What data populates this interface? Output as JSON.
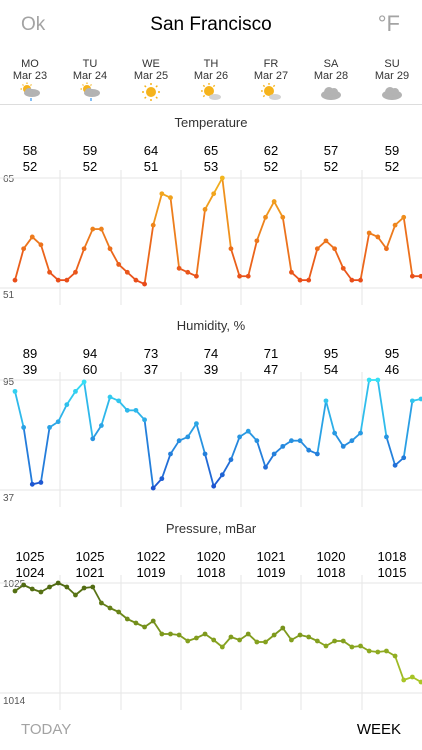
{
  "header": {
    "ok_label": "Ok",
    "city": "San Francisco",
    "unit_label": "°F"
  },
  "days": [
    {
      "name": "MO",
      "date": "Mar 23",
      "icon": "partly-sunny-rain-icon"
    },
    {
      "name": "TU",
      "date": "Mar 24",
      "icon": "partly-sunny-rain-icon"
    },
    {
      "name": "WE",
      "date": "Mar 25",
      "icon": "sun-icon"
    },
    {
      "name": "TH",
      "date": "Mar 26",
      "icon": "sun-cloud-icon"
    },
    {
      "name": "FR",
      "date": "Mar 27",
      "icon": "sun-cloud-icon"
    },
    {
      "name": "SA",
      "date": "Mar 28",
      "icon": "cloud-icon"
    },
    {
      "name": "SU",
      "date": "Mar 29",
      "icon": "cloud-icon"
    }
  ],
  "temperature": {
    "title": "Temperature",
    "axis_max": "65",
    "axis_min": "51",
    "daily": [
      {
        "high": "58",
        "low": "52"
      },
      {
        "high": "59",
        "low": "52"
      },
      {
        "high": "64",
        "low": "51"
      },
      {
        "high": "65",
        "low": "53"
      },
      {
        "high": "62",
        "low": "52"
      },
      {
        "high": "57",
        "low": "52"
      },
      {
        "high": "59",
        "low": "52"
      }
    ]
  },
  "humidity": {
    "title": "Humidity, %",
    "axis_max": "95",
    "axis_min": "37",
    "daily": [
      {
        "high": "89",
        "low": "39"
      },
      {
        "high": "94",
        "low": "60"
      },
      {
        "high": "73",
        "low": "37"
      },
      {
        "high": "74",
        "low": "39"
      },
      {
        "high": "71",
        "low": "47"
      },
      {
        "high": "95",
        "low": "54"
      },
      {
        "high": "95",
        "low": "46"
      }
    ]
  },
  "pressure": {
    "title": "Pressure, mBar",
    "axis_max": "1025",
    "axis_min": "1014",
    "daily": [
      {
        "high": "1025",
        "low": "1024"
      },
      {
        "high": "1025",
        "low": "1021"
      },
      {
        "high": "1022",
        "low": "1019"
      },
      {
        "high": "1020",
        "low": "1018"
      },
      {
        "high": "1021",
        "low": "1019"
      },
      {
        "high": "1020",
        "low": "1018"
      },
      {
        "high": "1018",
        "low": "1015"
      }
    ]
  },
  "chart_data": [
    {
      "type": "line",
      "title": "Temperature",
      "ylim": [
        51,
        65
      ],
      "colors": [
        "#e8461a",
        "#f2b51e"
      ],
      "series": [
        {
          "values": [
            52,
            56,
            57.5,
            56.5,
            53,
            52,
            52,
            53,
            56,
            58.5,
            58.5,
            56,
            54,
            53,
            52,
            51.5,
            59,
            63,
            62.5,
            53.5,
            53,
            52.5,
            61,
            63,
            65,
            56,
            52.5,
            52.5,
            57,
            60,
            62,
            60,
            53,
            52,
            52,
            56,
            57,
            56,
            53.5,
            52,
            52,
            58,
            57.5,
            56,
            59,
            60,
            52.5,
            52.5
          ]
        }
      ]
    },
    {
      "type": "line",
      "title": "Humidity, %",
      "ylim": [
        37,
        95
      ],
      "colors": [
        "#1c4fcf",
        "#35e0f5"
      ],
      "series": [
        {
          "values": [
            89,
            70,
            40,
            41,
            70,
            73,
            82,
            89,
            94,
            64,
            71,
            86,
            84,
            79,
            79,
            74,
            38,
            43,
            56,
            63,
            65,
            72,
            56,
            39,
            45,
            53,
            65,
            68,
            63,
            49,
            56,
            60,
            63,
            63,
            58,
            56,
            84,
            67,
            60,
            63,
            67,
            95,
            95,
            65,
            50,
            54,
            84,
            85
          ]
        }
      ]
    },
    {
      "type": "line",
      "title": "Pressure, mBar",
      "ylim": [
        1014,
        1025
      ],
      "colors": [
        "#b5d22a",
        "#4e6812"
      ],
      "series": [
        {
          "values": [
            1024.2,
            1024.8,
            1024.4,
            1024.1,
            1024.6,
            1025,
            1024.6,
            1023.8,
            1024.5,
            1024.6,
            1023,
            1022.5,
            1022.1,
            1021.4,
            1021,
            1020.6,
            1021.2,
            1019.9,
            1019.9,
            1019.8,
            1019.2,
            1019.5,
            1019.9,
            1019.3,
            1018.6,
            1019.6,
            1019.3,
            1019.9,
            1019.1,
            1019.1,
            1019.8,
            1020.5,
            1019.3,
            1019.8,
            1019.6,
            1019.2,
            1018.7,
            1019.2,
            1019.2,
            1018.6,
            1018.7,
            1018.2,
            1018.1,
            1018.2,
            1017.7,
            1015.3,
            1015.6,
            1015.1
          ]
        }
      ]
    }
  ],
  "footer": {
    "today_label": "TODAY",
    "week_label": "WEEK"
  }
}
